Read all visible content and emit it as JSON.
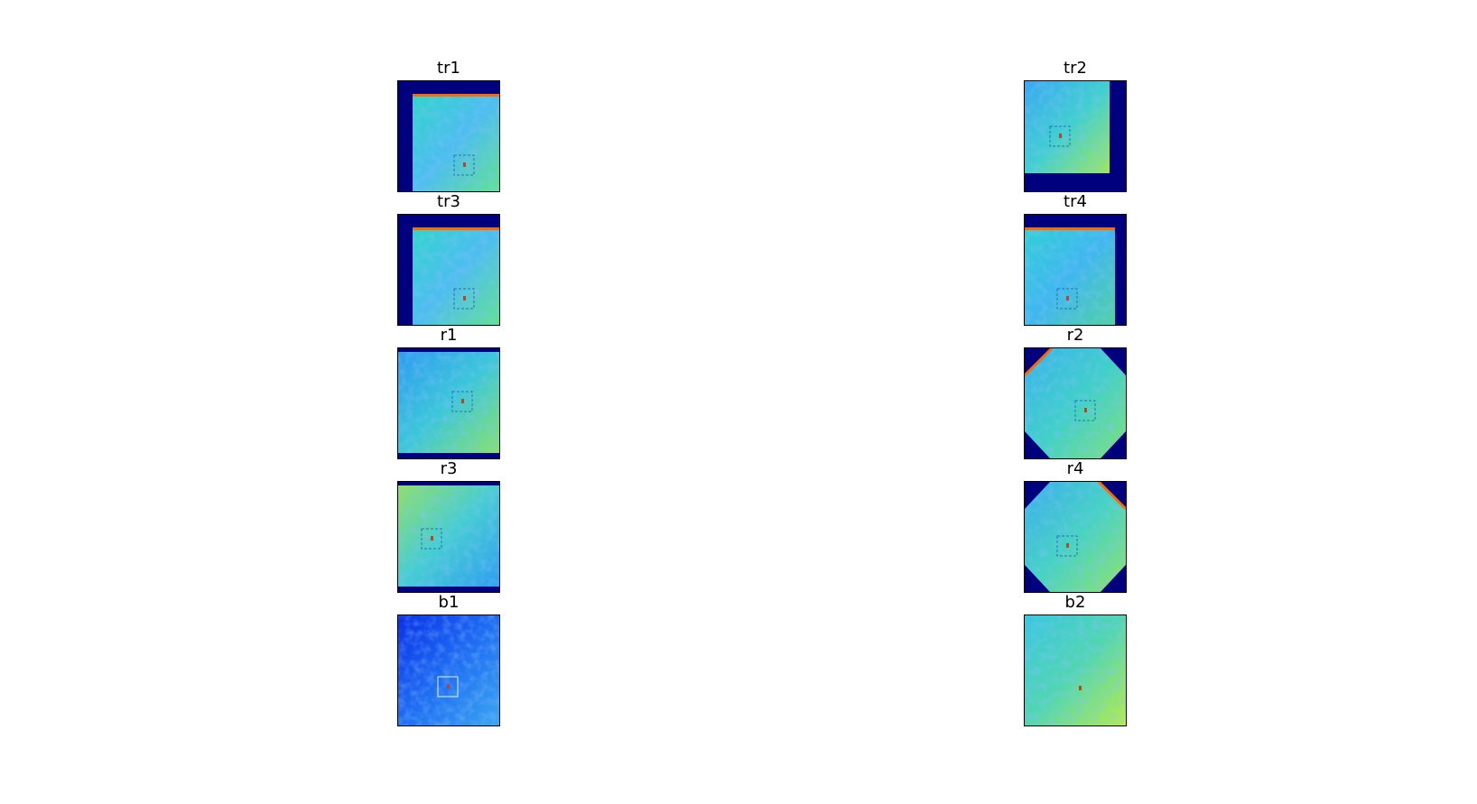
{
  "panels": [
    {
      "id": "tr1",
      "title": "tr1",
      "variant": "topbar-left"
    },
    {
      "id": "tr2",
      "title": "tr2",
      "variant": "topright-cut"
    },
    {
      "id": "tr3",
      "title": "tr3",
      "variant": "topbar-left"
    },
    {
      "id": "tr4",
      "title": "tr4",
      "variant": "topbar-right"
    },
    {
      "id": "r1",
      "title": "r1",
      "variant": "full"
    },
    {
      "id": "r2",
      "title": "r2",
      "variant": "octagon"
    },
    {
      "id": "r3",
      "title": "r3",
      "variant": "full-shift"
    },
    {
      "id": "r4",
      "title": "r4",
      "variant": "octagon-flip"
    },
    {
      "id": "b1",
      "title": "b1",
      "variant": "blue"
    },
    {
      "id": "b2",
      "title": "b2",
      "variant": "plain"
    }
  ],
  "colors": {
    "background_fill": "#00007f",
    "accent_marker": "#ff2a00",
    "edge_strip": "#ff6a00"
  }
}
